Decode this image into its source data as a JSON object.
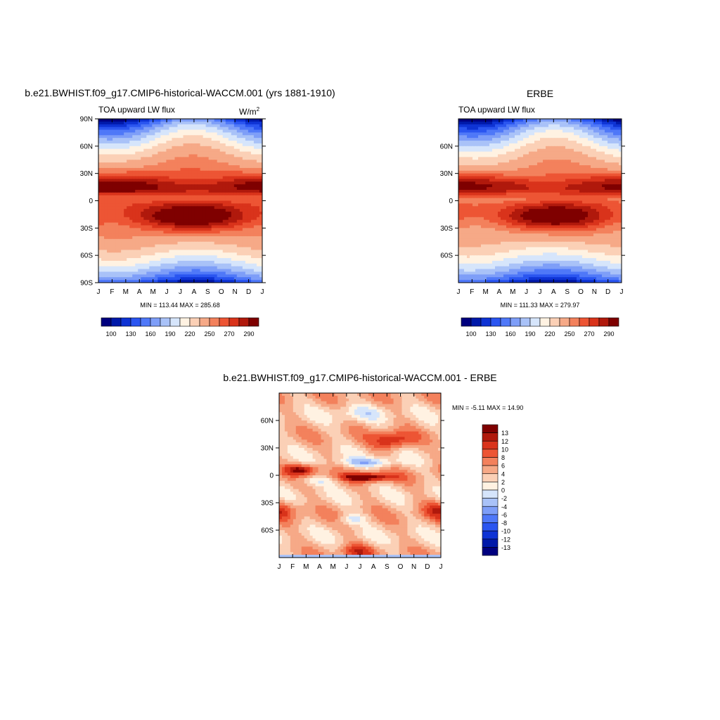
{
  "chart_data": [
    {
      "type": "heatmap",
      "title": "b.e21.BWHIST.f09_g17.CMIP6-historical-WACCM.001 (yrs 1881-1910)",
      "subtitle": "TOA upward LW flux",
      "units": "W/m",
      "units_sup": "2",
      "x_ticks": [
        "J",
        "F",
        "M",
        "A",
        "M",
        "J",
        "J",
        "A",
        "S",
        "O",
        "N",
        "D",
        "J"
      ],
      "y_ticks": [
        "90N",
        "60N",
        "30N",
        "0",
        "30S",
        "60S",
        "90S"
      ],
      "y_tick_values": [
        90,
        60,
        30,
        0,
        -30,
        -60,
        -90
      ],
      "ylim": [
        -90,
        90
      ],
      "stats": "MIN = 113.44 MAX = 285.68",
      "min": 113.44,
      "max": 285.68,
      "colorbar_labels": [
        "100",
        "130",
        "160",
        "190",
        "220",
        "250",
        "270",
        "290"
      ],
      "colorbar_orientation": "horizontal",
      "colors": [
        "#00007f",
        "#0019a9",
        "#0e33d4",
        "#2a55f0",
        "#4f78f8",
        "#7e9ef8",
        "#a9c2f8",
        "#d6e5fb",
        "#fff2e2",
        "#fbd0b6",
        "#f6a987",
        "#f3815c",
        "#ed5534",
        "#d9331b",
        "#b0190c",
        "#7f0000"
      ]
    },
    {
      "type": "heatmap",
      "title": "ERBE",
      "subtitle": "TOA upward LW flux",
      "x_ticks": [
        "J",
        "F",
        "M",
        "A",
        "M",
        "J",
        "J",
        "A",
        "S",
        "O",
        "N",
        "D",
        "J"
      ],
      "y_ticks": [
        "60N",
        "30N",
        "0",
        "30S",
        "60S"
      ],
      "y_tick_values": [
        60,
        30,
        0,
        -30,
        -60
      ],
      "ylim": [
        -90,
        90
      ],
      "stats": "MIN = 111.33 MAX = 279.97",
      "min": 111.33,
      "max": 279.97,
      "colorbar_labels": [
        "100",
        "130",
        "160",
        "190",
        "220",
        "250",
        "270",
        "290"
      ],
      "colorbar_orientation": "horizontal",
      "colors": [
        "#00007f",
        "#0019a9",
        "#0e33d4",
        "#2a55f0",
        "#4f78f8",
        "#7e9ef8",
        "#a9c2f8",
        "#d6e5fb",
        "#fff2e2",
        "#fbd0b6",
        "#f6a987",
        "#f3815c",
        "#ed5534",
        "#d9331b",
        "#b0190c",
        "#7f0000"
      ]
    },
    {
      "type": "heatmap",
      "title": "b.e21.BWHIST.f09_g17.CMIP6-historical-WACCM.001 - ERBE",
      "x_ticks": [
        "J",
        "F",
        "M",
        "A",
        "M",
        "J",
        "J",
        "A",
        "S",
        "O",
        "N",
        "D",
        "J"
      ],
      "y_ticks": [
        "60N",
        "30N",
        "0",
        "30S",
        "60S"
      ],
      "y_tick_values": [
        60,
        30,
        0,
        -30,
        -60
      ],
      "ylim": [
        -90,
        90
      ],
      "stats": "MIN =  -5.11 MAX =  14.90",
      "min": -5.11,
      "max": 14.9,
      "colorbar_labels": [
        "13",
        "12",
        "10",
        "8",
        "6",
        "4",
        "2",
        "0",
        "-2",
        "-4",
        "-6",
        "-8",
        "-10",
        "-12",
        "-13"
      ],
      "colorbar_orientation": "vertical",
      "colors": [
        "#7f0000",
        "#b0190c",
        "#d9331b",
        "#ed5534",
        "#f3815c",
        "#f6a987",
        "#fbd0b6",
        "#fff2e2",
        "#d6e5fb",
        "#a9c2f8",
        "#7e9ef8",
        "#4f78f8",
        "#2a55f0",
        "#0e33d4",
        "#0019a9",
        "#00007f"
      ]
    }
  ]
}
